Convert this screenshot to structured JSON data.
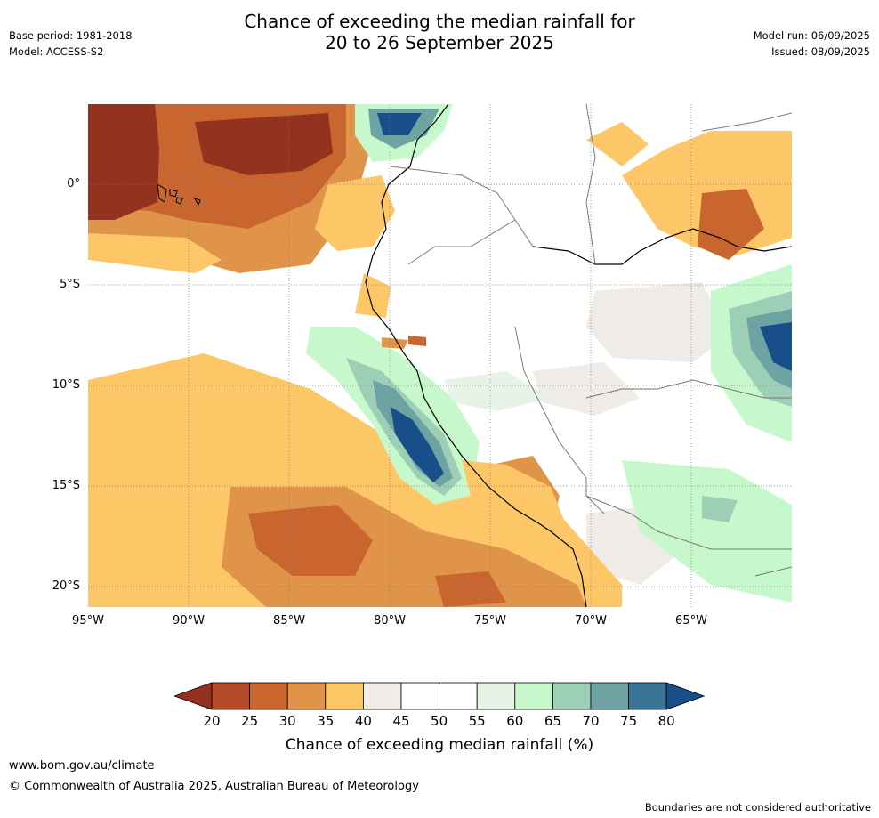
{
  "header": {
    "base_period": "Base period: 1981-2018",
    "model": "Model: ACCESS-S2",
    "title_line1": "Chance of exceeding the median rainfall for",
    "title_line2": "20 to 26 September 2025",
    "model_run": "Model run: 06/09/2025",
    "issued": "Issued: 08/09/2025"
  },
  "map": {
    "lat_labels": [
      "0°",
      "5°S",
      "10°S",
      "15°S",
      "20°S"
    ],
    "lon_labels": [
      "95°W",
      "90°W",
      "85°W",
      "80°W",
      "75°W",
      "70°W",
      "65°W"
    ],
    "colors": {
      "c15": "#7d2a1c",
      "c20": "#93321f",
      "c25": "#b44a28",
      "c30": "#c9652e",
      "c35": "#e0944a",
      "c40": "#fdc767",
      "c45": "#efebe6",
      "c50": "#ffffff",
      "c55": "#ffffff",
      "c60": "#e6f3e6",
      "c65": "#c6f8cc",
      "c70": "#9ccfb6",
      "c75": "#6ea3a3",
      "c80": "#3a7496",
      "c85": "#184f8a"
    }
  },
  "colorbar": {
    "ticks": [
      "20",
      "25",
      "30",
      "35",
      "40",
      "45",
      "50",
      "55",
      "60",
      "65",
      "70",
      "75",
      "80"
    ],
    "label": "Chance of exceeding median rainfall (%)",
    "colors": [
      "#93321f",
      "#b44a28",
      "#c9652e",
      "#e0944a",
      "#fdc767",
      "#efebe6",
      "#ffffff",
      "#ffffff",
      "#e6f3e6",
      "#c6f8cc",
      "#9ccfb6",
      "#6ea3a3",
      "#3a7496",
      "#184f8a"
    ]
  },
  "footer": {
    "website": "www.bom.gov.au/climate",
    "copyright": "© Commonwealth of Australia 2025, Australian Bureau of Meteorology",
    "disclaimer": "Boundaries are not considered authoritative"
  }
}
